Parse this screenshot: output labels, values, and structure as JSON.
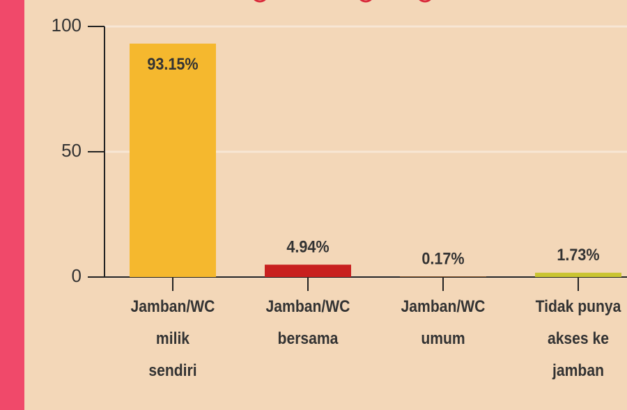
{
  "chart_data": {
    "type": "bar",
    "categories": [
      "Jamban/WC milik sendiri",
      "Jamban/WC bersama",
      "Jamban/WC umum",
      "Tidak punya akses ke jamban"
    ],
    "values": [
      93.15,
      4.94,
      0.17,
      1.73
    ],
    "value_labels": [
      "93.15%",
      "4.94%",
      "0.17%",
      "1.73%"
    ],
    "colors": [
      "#f5b82e",
      "#c8201f",
      "#b5651d",
      "#c9c430"
    ],
    "ylim": [
      0,
      100
    ],
    "yticks": [
      0,
      50,
      100
    ],
    "grid": true
  }
}
